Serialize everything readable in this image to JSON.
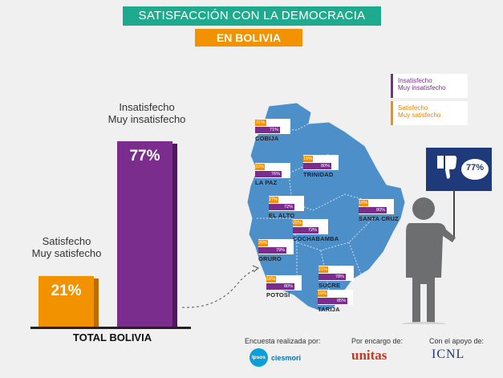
{
  "header": {
    "title": "SATISFACCIÓN CON LA DEMOCRACIA",
    "subtitle": "EN BOLIVIA"
  },
  "chart_data": [
    {
      "type": "bar",
      "categories": [
        "Satisfecho / Muy satisfecho",
        "Insatisfecho / Muy insatisfecho"
      ],
      "values": [
        21,
        77
      ],
      "value_labels": [
        "21%",
        "77%"
      ],
      "category_lines": [
        [
          "Satisfecho",
          "Muy satisfecho"
        ],
        [
          "Insatisfecho",
          "Muy insatisfecho"
        ]
      ],
      "xlabel": "TOTAL BOLIVIA",
      "colors": [
        "#f39200",
        "#7b2d8e"
      ],
      "ylim": [
        0,
        80
      ]
    },
    {
      "type": "bar",
      "categories": [
        "COBIJA",
        "TRINIDAD",
        "LA PAZ",
        "EL ALTO",
        "SANTA CRUZ",
        "COCHABAMBA",
        "ORURO",
        "SUCRE",
        "POTOSÍ",
        "TARIJA"
      ],
      "series": [
        {
          "name": "Satisfecho / Muy satisfecho",
          "values": [
            31,
            15,
            22,
            27,
            16,
            26,
            20,
            21,
            18,
            16
          ],
          "labels": [
            "31%",
            "15%",
            "22%",
            "27%",
            "16%",
            "26%",
            "20%",
            "21%",
            "18%",
            "16%"
          ],
          "color": "#f39200"
        },
        {
          "name": "Insatisfecho / Muy insatisfecho",
          "values": [
            71,
            80,
            76,
            72,
            80,
            72,
            79,
            78,
            80,
            85
          ],
          "labels": [
            "71%",
            "80%",
            "76%",
            "72%",
            "80%",
            "72%",
            "79%",
            "78%",
            "80%",
            "85%"
          ],
          "color": "#7b2d8e"
        }
      ],
      "ylim": [
        0,
        100
      ]
    }
  ],
  "legend": {
    "insatisfecho": [
      "Insatisfecho",
      "Muy insatisfecho"
    ],
    "satisfecho": [
      "Satisfecho",
      "Muy satisfecho"
    ]
  },
  "sign_value": "77%",
  "footer": {
    "encuesta": "Encuesta realizada por:",
    "encargo": "Por encargo de:",
    "apoyo": "Con el apoyo de:",
    "logo_ipsos": "Ipsos",
    "logo_ciesmori": "ciesmori",
    "logo_unitas": "unitas",
    "logo_icnl": "ICNL"
  },
  "colors": {
    "accent_teal": "#1eaa8e",
    "orange": "#f39200",
    "purple": "#7b2d8e",
    "map": "#4d8fc9",
    "navy": "#1e3a7a",
    "person": "#6d6e70"
  }
}
